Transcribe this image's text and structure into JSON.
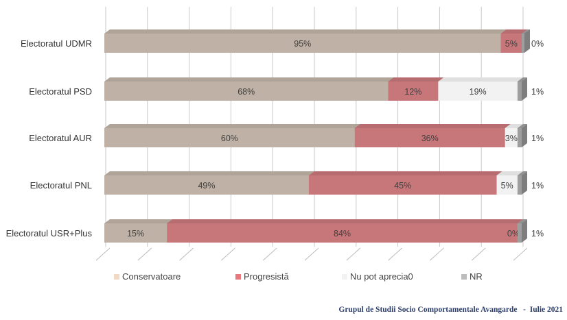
{
  "chart_data": {
    "type": "bar",
    "orientation": "horizontal",
    "stacked": true,
    "percent": true,
    "categories": [
      "Electoratul UDMR",
      "Electoratul PSD",
      "Electoratul AUR",
      "Electoratul PNL",
      "Electoratul USR+Plus"
    ],
    "series": [
      {
        "name": "Conservatoare",
        "color": "#bfb1a5",
        "legend_color": "#f2d9c4",
        "values": [
          95,
          68,
          60,
          49,
          15
        ]
      },
      {
        "name": "Progresistă",
        "color": "#c7777a",
        "legend_color": "#e9787c",
        "values": [
          5,
          12,
          36,
          45,
          84
        ]
      },
      {
        "name": "Nu pot aprecia0",
        "color": "#f2f2f2",
        "legend_color": "#f2f2f2",
        "values": [
          0,
          19,
          3,
          5,
          0
        ]
      },
      {
        "name": "NR",
        "color": "#9e9e9e",
        "legend_color": "#bdbdbd",
        "values": [
          0,
          1,
          1,
          1,
          1
        ]
      }
    ],
    "labels": [
      [
        "95%",
        "5%",
        "",
        "0%"
      ],
      [
        "68%",
        "12%",
        "19%",
        "1%"
      ],
      [
        "60%",
        "36%",
        "3%",
        "1%"
      ],
      [
        "49%",
        "45%",
        "5%",
        "1%"
      ],
      [
        "15%",
        "84%",
        "0%",
        "1%"
      ]
    ],
    "xlim": [
      0,
      100
    ],
    "grid": true,
    "legend_position": "bottom"
  },
  "footer": {
    "source": "Grupul de Studii Socio Comportamentale Avangarde",
    "date": "Iulie 2021"
  }
}
